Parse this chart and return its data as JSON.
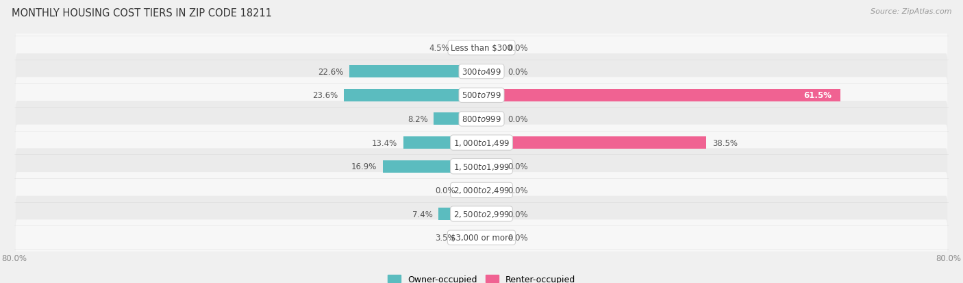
{
  "title": "MONTHLY HOUSING COST TIERS IN ZIP CODE 18211",
  "source": "Source: ZipAtlas.com",
  "categories": [
    "Less than $300",
    "$300 to $499",
    "$500 to $799",
    "$800 to $999",
    "$1,000 to $1,499",
    "$1,500 to $1,999",
    "$2,000 to $2,499",
    "$2,500 to $2,999",
    "$3,000 or more"
  ],
  "owner_values": [
    4.5,
    22.6,
    23.6,
    8.2,
    13.4,
    16.9,
    0.0,
    7.4,
    3.5
  ],
  "renter_values": [
    0.0,
    0.0,
    61.5,
    0.0,
    38.5,
    0.0,
    0.0,
    0.0,
    0.0
  ],
  "owner_color": "#5bbcbf",
  "owner_color_light": "#a8d8da",
  "renter_color": "#f06292",
  "renter_color_light": "#f8bbd0",
  "background_color": "#f0f0f0",
  "row_bg_even": "#f7f7f7",
  "row_bg_odd": "#ebebeb",
  "axis_limit": 80.0,
  "stub_size": 3.5,
  "label_fontsize": 8.5,
  "title_fontsize": 10.5,
  "legend_fontsize": 9,
  "axis_label_fontsize": 8.5,
  "cat_label_fontsize": 8.5
}
